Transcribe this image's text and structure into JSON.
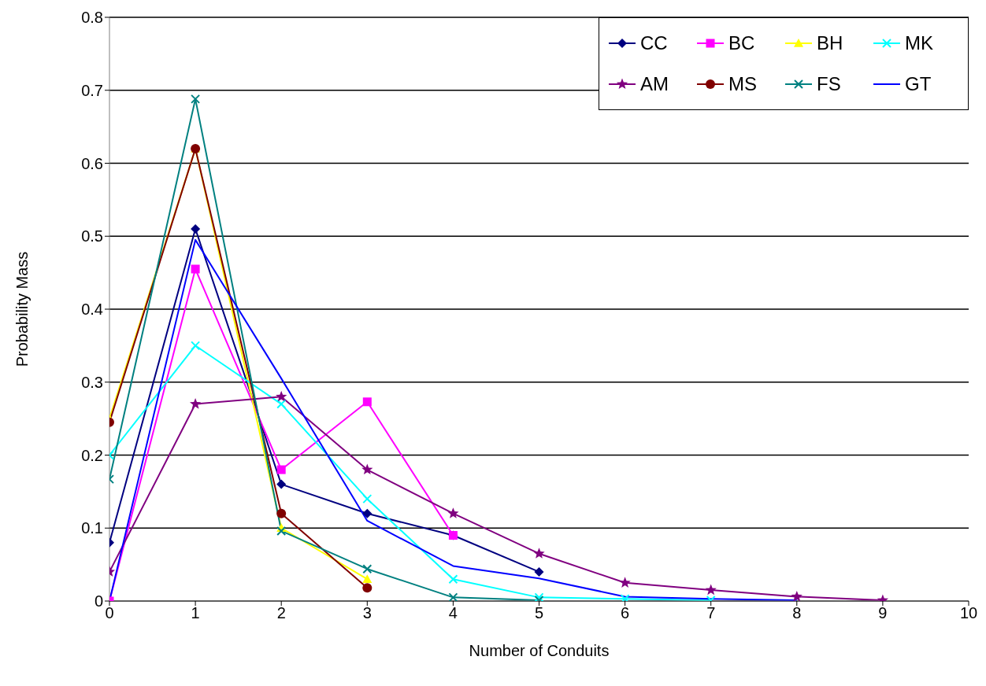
{
  "chart_data": {
    "type": "line",
    "xlabel": "Number of Conduits",
    "ylabel": "Probability Mass",
    "xlim": [
      0,
      10
    ],
    "xticks": [
      0,
      1,
      2,
      3,
      4,
      5,
      6,
      7,
      8,
      9,
      10
    ],
    "ylim": [
      0,
      0.8
    ],
    "yticks": [
      0,
      0.1,
      0.2,
      0.3,
      0.4,
      0.5,
      0.6,
      0.7,
      0.8
    ],
    "grid": "y",
    "legend": "top right",
    "x": [
      0,
      1,
      2,
      3,
      4,
      5,
      6,
      7,
      8,
      9
    ],
    "series": [
      {
        "name": "CC",
        "color": "#000080",
        "marker": "diamond",
        "values": [
          0.08,
          0.51,
          0.16,
          0.12,
          0.09,
          0.04,
          null,
          null,
          null,
          null
        ]
      },
      {
        "name": "BC",
        "color": "#ff00ff",
        "marker": "square",
        "values": [
          0,
          0.455,
          0.18,
          0.273,
          0.09,
          null,
          null,
          null,
          null,
          null
        ]
      },
      {
        "name": "BH",
        "color": "#ffff00",
        "marker": "triangle",
        "values": [
          0.25,
          0.62,
          0.1,
          0.03,
          null,
          null,
          null,
          null,
          null,
          null
        ]
      },
      {
        "name": "MK",
        "color": "#00ffff",
        "marker": "cross",
        "values": [
          0.2,
          0.35,
          0.27,
          0.14,
          0.03,
          0.005,
          0.003,
          0.001,
          null,
          null
        ]
      },
      {
        "name": "AM",
        "color": "#800080",
        "marker": "star",
        "values": [
          0.04,
          0.27,
          0.28,
          0.18,
          0.12,
          0.065,
          0.025,
          0.015,
          0.006,
          0.001
        ]
      },
      {
        "name": "MS",
        "color": "#800000",
        "marker": "circle",
        "values": [
          0.245,
          0.62,
          0.12,
          0.018,
          null,
          null,
          null,
          null,
          null,
          null
        ]
      },
      {
        "name": "FS",
        "color": "#008080",
        "marker": "cross",
        "values": [
          0.167,
          0.688,
          0.096,
          0.044,
          0.005,
          0.001,
          null,
          null,
          null,
          null
        ]
      },
      {
        "name": "GT",
        "color": "#0000ff",
        "marker": "none",
        "values": [
          0,
          0.495,
          0.305,
          0.11,
          0.048,
          0.031,
          0.006,
          0.003,
          0.001,
          null
        ]
      }
    ]
  }
}
